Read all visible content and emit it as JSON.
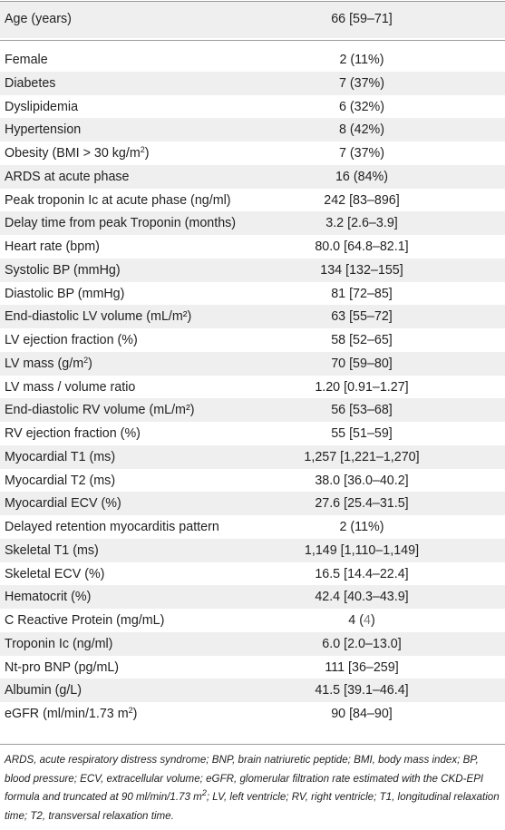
{
  "header": {
    "label": "Age (years)",
    "value": "66 [59–71]"
  },
  "rows": [
    {
      "label": "Female",
      "value": "2 (11%)"
    },
    {
      "label": "Diabetes",
      "value": "7 (37%)"
    },
    {
      "label": "Dyslipidemia",
      "value": "6 (32%)"
    },
    {
      "label": "Hypertension",
      "value": "8 (42%)"
    },
    {
      "label_pre": "Obesity (BMI > 30 kg/m",
      "label_sup": "2",
      "label_post": ")",
      "value": "7 (37%)"
    },
    {
      "label": "ARDS at acute phase",
      "value": "16 (84%)"
    },
    {
      "label": "Peak troponin Ic at acute phase (ng/ml)",
      "value": "242 [83–896]"
    },
    {
      "label": "Delay time from peak Troponin (months)",
      "value": "3.2 [2.6–3.9]"
    },
    {
      "label": "Heart rate (bpm)",
      "value": "80.0 [64.8–82.1]"
    },
    {
      "label": "Systolic BP (mmHg)",
      "value": "134 [132–155]"
    },
    {
      "label": "Diastolic BP (mmHg)",
      "value": "81 [72–85]"
    },
    {
      "label": "End-diastolic LV volume (mL/m²)",
      "value": "63 [55–72]"
    },
    {
      "label": "LV ejection fraction (%)",
      "value": "58 [52–65]"
    },
    {
      "label_pre": "LV mass (g/m",
      "label_sup": "2",
      "label_post": ")",
      "value": "70 [59–80]"
    },
    {
      "label": "LV mass / volume ratio",
      "value": "1.20 [0.91–1.27]"
    },
    {
      "label": "End-diastolic RV volume (mL/m²)",
      "value": "56 [53–68]"
    },
    {
      "label": "RV ejection fraction (%)",
      "value": "55 [51–59]"
    },
    {
      "label": "Myocardial T1 (ms)",
      "value": "1,257 [1,221–1,270]"
    },
    {
      "label": "Myocardial T2 (ms)",
      "value": "38.0 [36.0–40.2]"
    },
    {
      "label": "Myocardial ECV (%)",
      "value": "27.6 [25.4–31.5]"
    },
    {
      "label": "Delayed retention myocarditis pattern",
      "value": "2 (11%)"
    },
    {
      "label": "Skeletal T1 (ms)",
      "value": "1,149 [1,110–1,149]"
    },
    {
      "label": "Skeletal ECV (%)",
      "value": "16.5 [14.4–22.4]"
    },
    {
      "label": "Hematocrit (%)",
      "value": "42.4 [40.3–43.9]"
    },
    {
      "label": "C Reactive Protein (mg/mL)",
      "value_pre": "4 (",
      "value_gray": "4",
      "value_post": ")"
    },
    {
      "label": "Troponin Ic (ng/ml)",
      "value": "6.0 [2.0–13.0]"
    },
    {
      "label": "Nt-pro BNP (pg/mL)",
      "value": "111 [36–259]"
    },
    {
      "label": "Albumin (g/L)",
      "value": "41.5 [39.1–46.4]"
    },
    {
      "label_pre": "eGFR (ml/min/1.73 m",
      "label_sup": "2",
      "label_post": ")",
      "value": "90 [84–90]"
    }
  ],
  "footnote": {
    "part1": "ARDS, acute respiratory distress syndrome; BNP, brain natriuretic peptide; BMI, body mass index; BP, blood pressure; ECV, extracellular volume; eGFR, glomerular filtration rate estimated with the CKD-EPI formula and truncated at 90 ml/min/1.73 m",
    "sup": "2",
    "part2": "; LV, left ventricle; RV, right ventricle; T1, longitudinal relaxation time; T2, transversal relaxation time."
  }
}
